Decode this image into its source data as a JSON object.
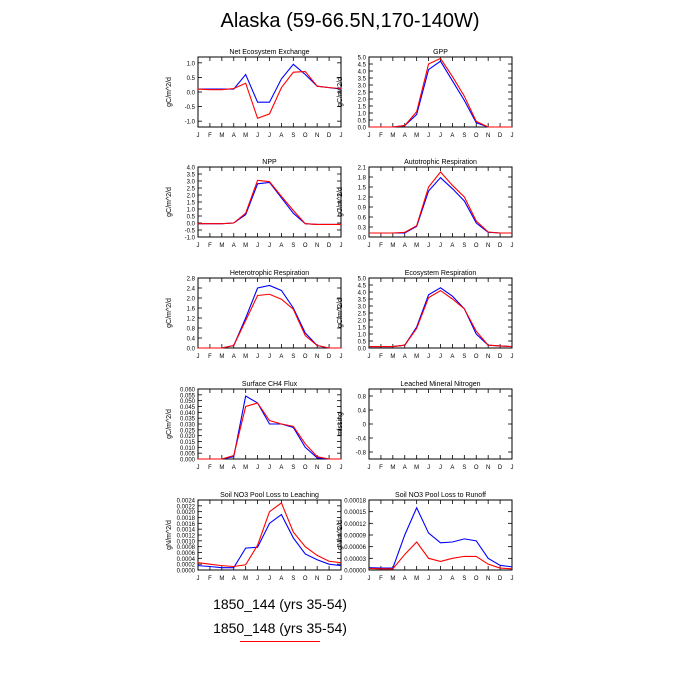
{
  "title": "Alaska (59-66.5N,170-140W)",
  "legend": {
    "items": [
      {
        "label": "1850_144 (yrs 35-54)",
        "color": "#0000ff"
      },
      {
        "label": "1850_148 (yrs 35-54)",
        "color": "#ff0000"
      }
    ]
  },
  "chart_data": [
    {
      "type": "line",
      "title": "Net Ecosystem Exchange",
      "ylabel": "gC/m^2/d",
      "x": [
        "J",
        "F",
        "M",
        "A",
        "M",
        "J",
        "J",
        "A",
        "S",
        "O",
        "N",
        "D",
        "J"
      ],
      "ylim": [
        -1.2,
        1.2
      ],
      "yticks": [
        -1.0,
        -0.5,
        0.0,
        0.5,
        1.0
      ],
      "ytick_labels": [
        "-1.0",
        "-0.5",
        "0.0",
        "0.5",
        "1.0"
      ],
      "series": [
        {
          "color": "#0000ff",
          "values": [
            0.1,
            0.1,
            0.1,
            0.1,
            0.6,
            -0.35,
            -0.35,
            0.45,
            0.95,
            0.6,
            0.2,
            0.15,
            0.1
          ]
        },
        {
          "color": "#ff0000",
          "values": [
            0.1,
            0.08,
            0.08,
            0.12,
            0.3,
            -0.9,
            -0.75,
            0.15,
            0.68,
            0.7,
            0.2,
            0.15,
            0.12
          ]
        }
      ]
    },
    {
      "type": "line",
      "title": "GPP",
      "ylabel": "gC/m^2/d",
      "x": [
        "J",
        "F",
        "M",
        "A",
        "M",
        "J",
        "J",
        "A",
        "S",
        "O",
        "N",
        "D",
        "J"
      ],
      "ylim": [
        0,
        5
      ],
      "yticks": [
        0,
        0.5,
        1,
        1.5,
        2,
        2.5,
        3,
        3.5,
        4,
        4.5,
        5
      ],
      "ytick_labels": [
        "0.0",
        "0.5",
        "1.0",
        "1.5",
        "2.0",
        "2.5",
        "3.0",
        "3.5",
        "4.0",
        "4.5",
        "5.0"
      ],
      "series": [
        {
          "color": "#0000ff",
          "values": [
            0.0,
            0.0,
            0.0,
            0.1,
            0.9,
            4.1,
            4.7,
            3.3,
            1.9,
            0.3,
            0.0,
            0.0,
            0.0
          ]
        },
        {
          "color": "#ff0000",
          "values": [
            0.0,
            0.0,
            0.0,
            0.1,
            1.1,
            4.5,
            4.9,
            3.6,
            2.2,
            0.4,
            0.0,
            0.0,
            0.0
          ]
        }
      ]
    },
    {
      "type": "line",
      "title": "NPP",
      "ylabel": "gC/m^2/d",
      "x": [
        "J",
        "F",
        "M",
        "A",
        "M",
        "J",
        "J",
        "A",
        "S",
        "O",
        "N",
        "D",
        "J"
      ],
      "ylim": [
        -1.0,
        4.0
      ],
      "yticks": [
        -1,
        -0.5,
        0,
        0.5,
        1,
        1.5,
        2,
        2.5,
        3,
        3.5,
        4
      ],
      "ytick_labels": [
        "-1.0",
        "-0.5",
        "0.0",
        "0.5",
        "1.0",
        "1.5",
        "2.0",
        "2.5",
        "3.0",
        "3.5",
        "4.0"
      ],
      "series": [
        {
          "color": "#0000ff",
          "values": [
            -0.05,
            -0.05,
            -0.05,
            0.0,
            0.6,
            2.8,
            2.9,
            1.8,
            0.7,
            -0.05,
            -0.1,
            -0.1,
            -0.1
          ]
        },
        {
          "color": "#ff0000",
          "values": [
            -0.05,
            -0.05,
            -0.05,
            0.0,
            0.7,
            3.05,
            2.95,
            1.9,
            0.9,
            -0.05,
            -0.1,
            -0.1,
            -0.1
          ]
        }
      ]
    },
    {
      "type": "line",
      "title": "Autotrophic Respiration",
      "ylabel": "gC/m^2/d",
      "x": [
        "J",
        "F",
        "M",
        "A",
        "M",
        "J",
        "J",
        "A",
        "S",
        "O",
        "N",
        "D",
        "J"
      ],
      "ylim": [
        0,
        2.1
      ],
      "yticks": [
        0,
        0.3,
        0.6,
        0.9,
        1.2,
        1.5,
        1.8,
        2.1
      ],
      "ytick_labels": [
        "0.0",
        "0.3",
        "0.6",
        "0.9",
        "1.2",
        "1.5",
        "1.8",
        "2.1"
      ],
      "series": [
        {
          "color": "#0000ff",
          "values": [
            0.12,
            0.12,
            0.12,
            0.12,
            0.32,
            1.38,
            1.78,
            1.45,
            1.08,
            0.42,
            0.14,
            0.12,
            0.12
          ]
        },
        {
          "color": "#ff0000",
          "values": [
            0.12,
            0.12,
            0.12,
            0.14,
            0.34,
            1.5,
            1.95,
            1.55,
            1.2,
            0.48,
            0.15,
            0.12,
            0.12
          ]
        }
      ]
    },
    {
      "type": "line",
      "title": "Heterotrophic Respiration",
      "ylabel": "gC/m^2/d",
      "x": [
        "J",
        "F",
        "M",
        "A",
        "M",
        "J",
        "J",
        "A",
        "S",
        "O",
        "N",
        "D",
        "J"
      ],
      "ylim": [
        0,
        2.8
      ],
      "yticks": [
        0,
        0.4,
        0.8,
        1.2,
        1.6,
        2.0,
        2.4,
        2.8
      ],
      "ytick_labels": [
        "0.0",
        "0.4",
        "0.8",
        "1.2",
        "1.6",
        "2.0",
        "2.4",
        "2.8"
      ],
      "series": [
        {
          "color": "#0000ff",
          "values": [
            0.0,
            0.0,
            0.0,
            0.1,
            1.2,
            2.4,
            2.5,
            2.3,
            1.6,
            0.6,
            0.1,
            0.0,
            0.0
          ]
        },
        {
          "color": "#ff0000",
          "values": [
            0.0,
            0.0,
            0.0,
            0.1,
            1.1,
            2.1,
            2.15,
            1.95,
            1.55,
            0.5,
            0.1,
            0.0,
            0.0
          ]
        }
      ]
    },
    {
      "type": "line",
      "title": "Ecosystem Respiration",
      "ylabel": "gC/m^2/d",
      "x": [
        "J",
        "F",
        "M",
        "A",
        "M",
        "J",
        "J",
        "A",
        "S",
        "O",
        "N",
        "D",
        "J"
      ],
      "ylim": [
        0,
        5
      ],
      "yticks": [
        0,
        0.5,
        1,
        1.5,
        2,
        2.5,
        3,
        3.5,
        4,
        4.5,
        5
      ],
      "ytick_labels": [
        "0.0",
        "0.5",
        "1.0",
        "1.5",
        "2.0",
        "2.5",
        "3.0",
        "3.5",
        "4.0",
        "4.5",
        "5.0"
      ],
      "series": [
        {
          "color": "#0000ff",
          "values": [
            0.1,
            0.1,
            0.1,
            0.2,
            1.5,
            3.8,
            4.3,
            3.7,
            2.8,
            1.0,
            0.2,
            0.15,
            0.1
          ]
        },
        {
          "color": "#ff0000",
          "values": [
            0.1,
            0.1,
            0.1,
            0.2,
            1.4,
            3.6,
            4.1,
            3.5,
            2.8,
            1.2,
            0.2,
            0.15,
            0.1
          ]
        }
      ]
    },
    {
      "type": "line",
      "title": "Surface CH4 Flux",
      "ylabel": "gC/m^2/d",
      "x": [
        "J",
        "F",
        "M",
        "A",
        "M",
        "J",
        "J",
        "A",
        "S",
        "O",
        "N",
        "D",
        "J"
      ],
      "ylim": [
        0,
        0.06
      ],
      "yticks": [
        0,
        0.005,
        0.01,
        0.015,
        0.02,
        0.025,
        0.03,
        0.035,
        0.04,
        0.045,
        0.05,
        0.055,
        0.06
      ],
      "ytick_labels": [
        "0.000",
        "0.005",
        "0.010",
        "0.015",
        "0.020",
        "0.025",
        "0.030",
        "0.035",
        "0.040",
        "0.045",
        "0.050",
        "0.055",
        "0.060"
      ],
      "series": [
        {
          "color": "#0000ff",
          "values": [
            0.0,
            0.0,
            0.0,
            0.002,
            0.054,
            0.048,
            0.03,
            0.03,
            0.027,
            0.01,
            0.001,
            0.0,
            0.0
          ]
        },
        {
          "color": "#ff0000",
          "values": [
            0.0,
            0.0,
            0.0,
            0.003,
            0.045,
            0.048,
            0.033,
            0.03,
            0.028,
            0.013,
            0.002,
            0.0,
            0.0
          ]
        }
      ]
    },
    {
      "type": "line",
      "title": "Leached Mineral Nitrogen",
      "ylabel": "missing",
      "x": [
        "J",
        "F",
        "M",
        "A",
        "M",
        "J",
        "J",
        "A",
        "S",
        "O",
        "N",
        "D",
        "J"
      ],
      "ylim": [
        -1.0,
        1.0
      ],
      "yticks": [
        -0.8,
        -0.4,
        0,
        0.4,
        0.8
      ],
      "ytick_labels": [
        "-0.8",
        "-0.4",
        "0",
        "0.4",
        "0.8"
      ],
      "series": []
    },
    {
      "type": "line",
      "title": "Soil NO3 Pool Loss to Leaching",
      "ylabel": "gN/m^2/d",
      "x": [
        "J",
        "F",
        "M",
        "A",
        "M",
        "J",
        "J",
        "A",
        "S",
        "O",
        "N",
        "D",
        "J"
      ],
      "ylim": [
        0,
        0.0024
      ],
      "yticks": [
        0,
        0.0002,
        0.0004,
        0.0006,
        0.0008,
        0.001,
        0.0012,
        0.0014,
        0.0016,
        0.0018,
        0.002,
        0.0022,
        0.0024
      ],
      "ytick_labels": [
        "0.0000",
        "0.0002",
        "0.0004",
        "0.0006",
        "0.0008",
        "0.0010",
        "0.0012",
        "0.0014",
        "0.0016",
        "0.0018",
        "0.0020",
        "0.0022",
        "0.0024"
      ],
      "series": [
        {
          "color": "#0000ff",
          "values": [
            0.00015,
            0.00012,
            8e-05,
            8e-05,
            0.00075,
            0.00078,
            0.0016,
            0.0019,
            0.0011,
            0.00055,
            0.00035,
            0.0002,
            0.00015
          ]
        },
        {
          "color": "#ff0000",
          "values": [
            0.00025,
            0.0002,
            0.00015,
            0.00012,
            0.00018,
            0.00085,
            0.002,
            0.0023,
            0.0013,
            0.0008,
            0.0005,
            0.0003,
            0.00025
          ]
        }
      ]
    },
    {
      "type": "line",
      "title": "Soil NO3 Pool Loss to Runoff",
      "ylabel": "gN/m^2/d",
      "x": [
        "J",
        "F",
        "M",
        "A",
        "M",
        "J",
        "J",
        "A",
        "S",
        "O",
        "N",
        "D",
        "J"
      ],
      "ylim": [
        0,
        0.00018
      ],
      "yticks": [
        0,
        3e-05,
        6e-05,
        9e-05,
        0.00012,
        0.00015,
        0.00018
      ],
      "ytick_labels": [
        "0.00000",
        "0.00003",
        "0.00006",
        "0.00009",
        "0.00012",
        "0.00015",
        "0.00018"
      ],
      "series": [
        {
          "color": "#0000ff",
          "values": [
            6e-06,
            5e-06,
            5e-06,
            9e-05,
            0.00016,
            9.5e-05,
            7e-05,
            7.2e-05,
            8e-05,
            7.5e-05,
            3e-05,
            1.2e-05,
            8e-06
          ]
        },
        {
          "color": "#ff0000",
          "values": [
            4e-06,
            3e-06,
            3e-06,
            4e-05,
            7.2e-05,
            3e-05,
            2.2e-05,
            3e-05,
            3.5e-05,
            3.5e-05,
            1.5e-05,
            5e-06,
            3e-06
          ]
        }
      ]
    }
  ]
}
